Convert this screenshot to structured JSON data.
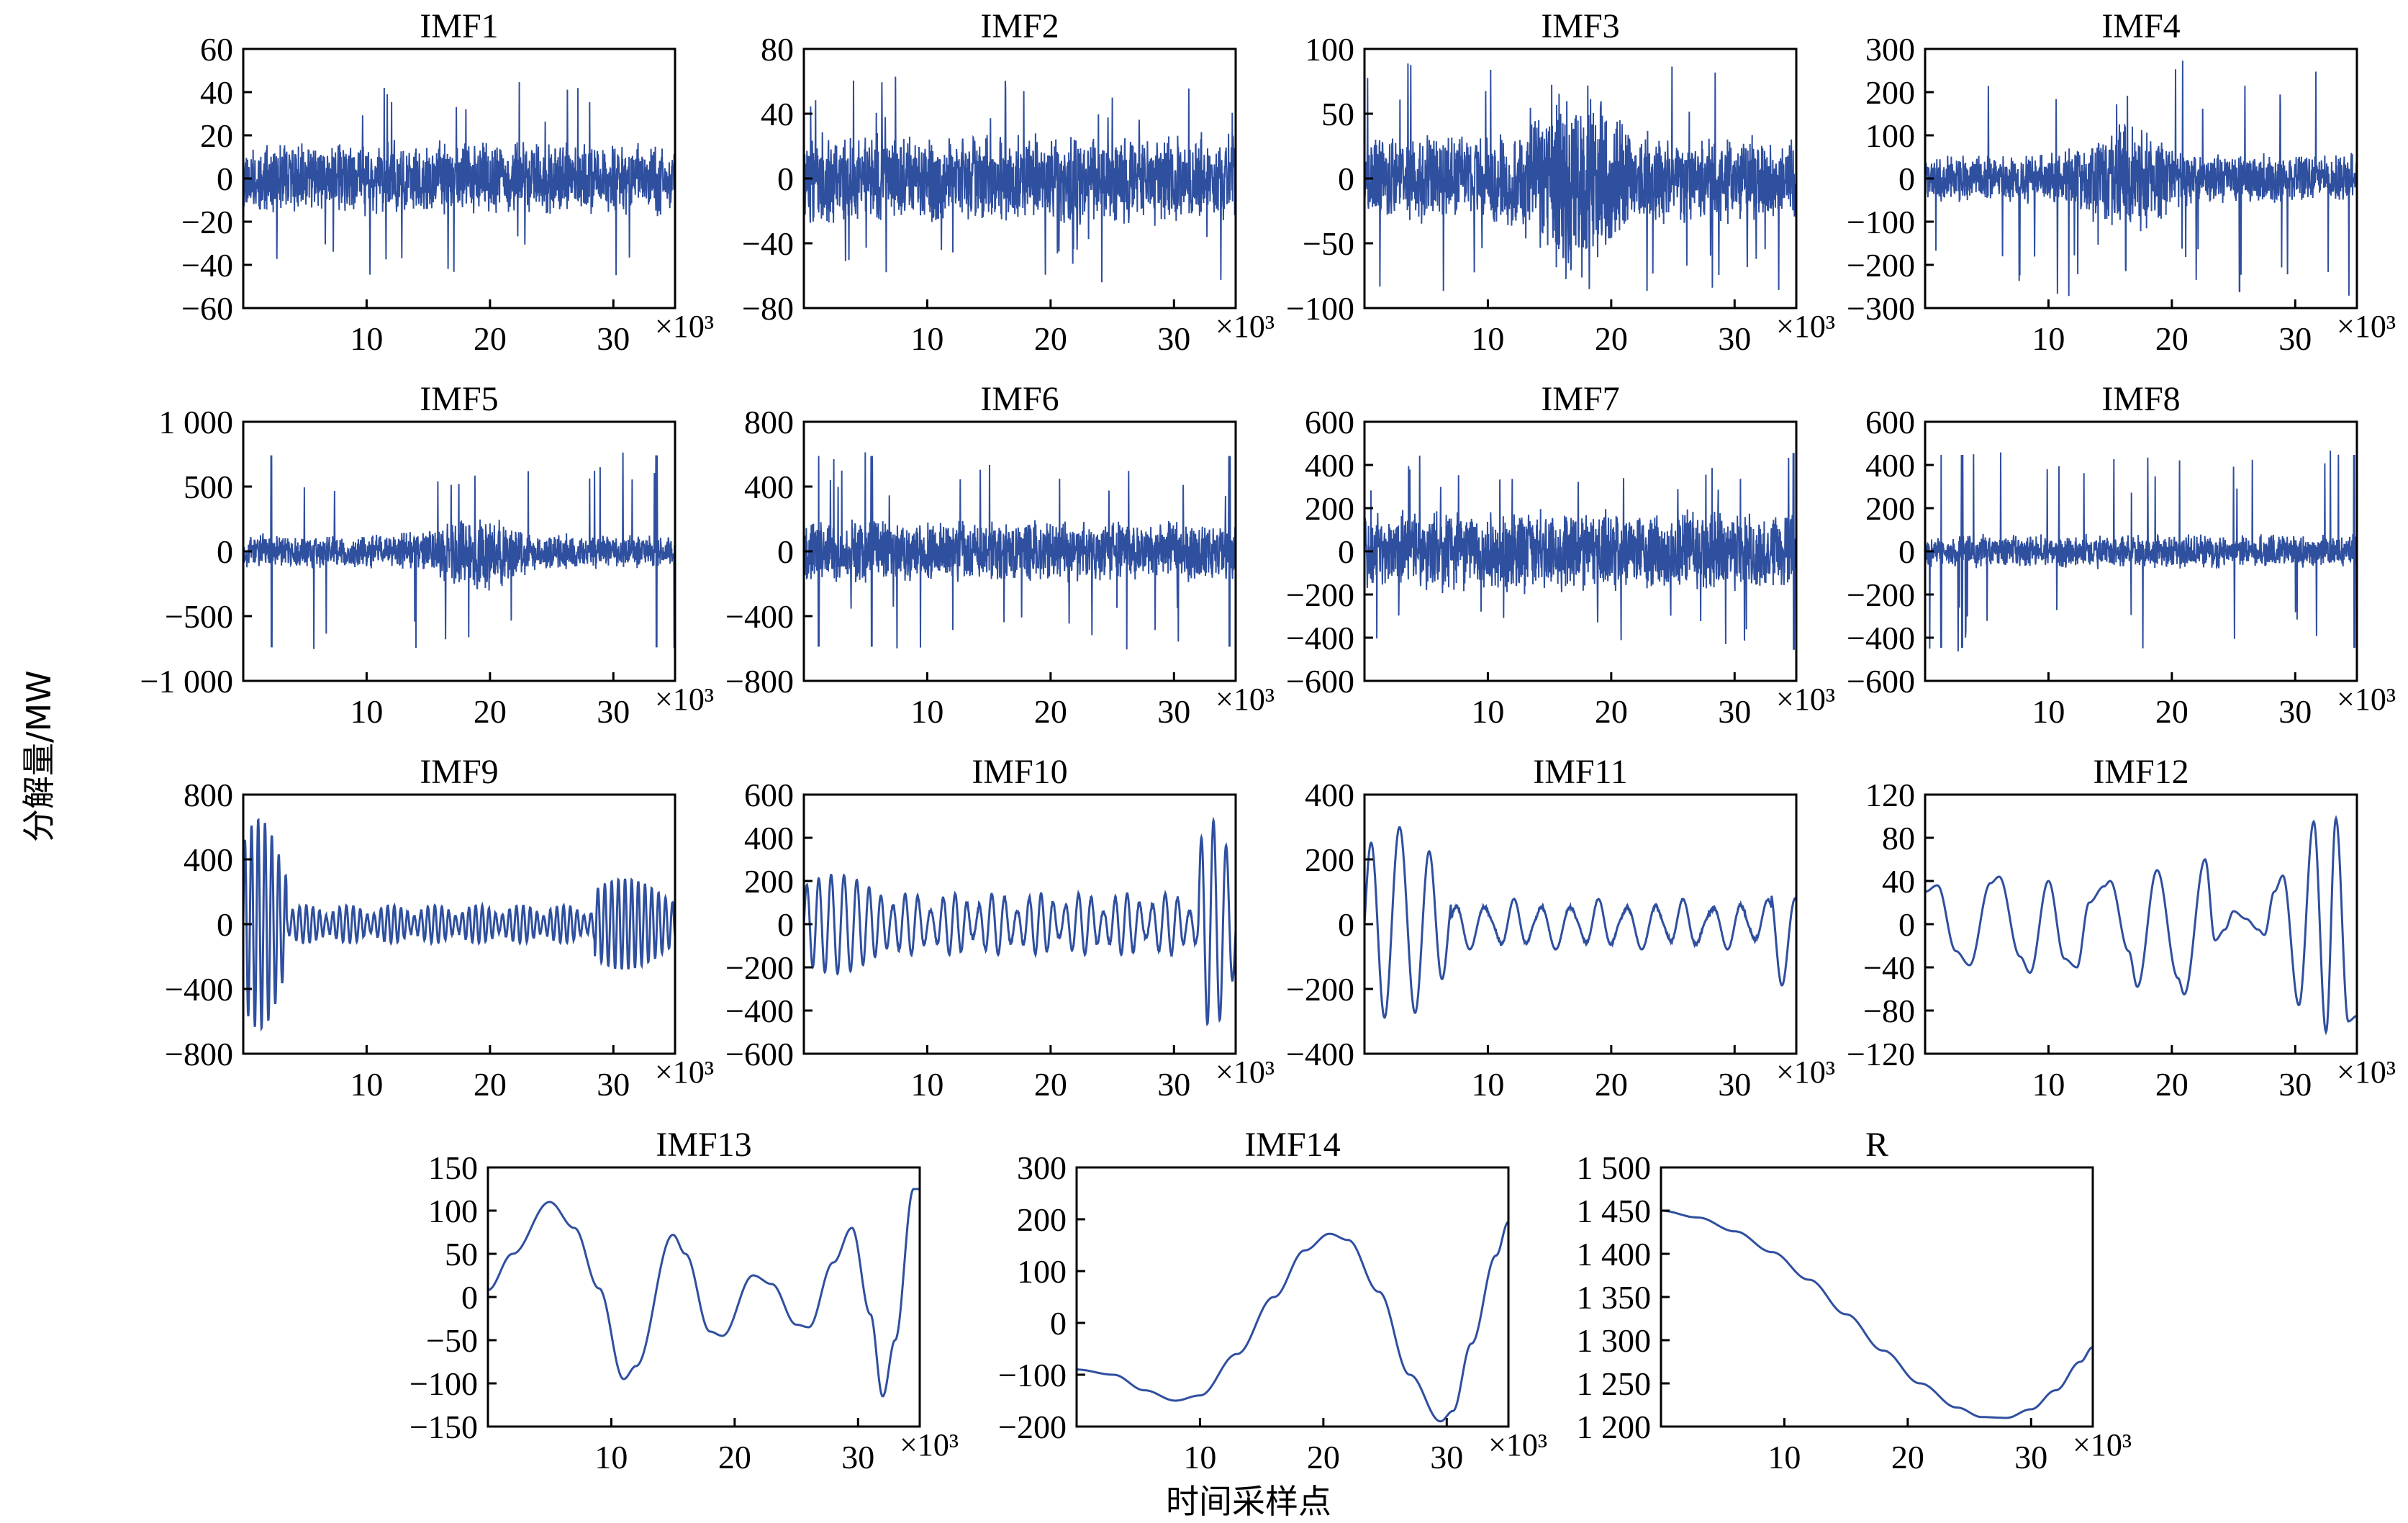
{
  "figure": {
    "ylabel": "分解量/MW",
    "xlabel": "时间采样点",
    "line_color": "#2f4f9f"
  },
  "chart_data": [
    {
      "type": "line",
      "title": "IMF1",
      "xlim": [
        0,
        35
      ],
      "ylim": [
        -60,
        60
      ],
      "xticks": [
        10,
        20,
        30
      ],
      "xtick_labels": [
        "10",
        "20",
        "30"
      ],
      "yticks": [
        -60,
        -40,
        -20,
        0,
        20,
        40,
        60
      ],
      "ytick_labels": [
        "−60",
        "−40",
        "−20",
        "0",
        "20",
        "40",
        "60"
      ],
      "x_multiplier": "×10³",
      "signal": {
        "kind": "noise",
        "amplitude": 15,
        "spike": 45,
        "seed": 11,
        "burst_center": null
      }
    },
    {
      "type": "line",
      "title": "IMF2",
      "xlim": [
        0,
        35
      ],
      "ylim": [
        -80,
        80
      ],
      "xticks": [
        10,
        20,
        30
      ],
      "xtick_labels": [
        "10",
        "20",
        "30"
      ],
      "yticks": [
        -80,
        -40,
        0,
        40,
        80
      ],
      "ytick_labels": [
        "−80",
        "−40",
        "0",
        "40",
        "80"
      ],
      "x_multiplier": "×10³",
      "signal": {
        "kind": "noise",
        "amplitude": 25,
        "spike": 65,
        "seed": 23,
        "burst_center": null
      }
    },
    {
      "type": "line",
      "title": "IMF3",
      "xlim": [
        0,
        35
      ],
      "ylim": [
        -100,
        100
      ],
      "xticks": [
        10,
        20,
        30
      ],
      "xtick_labels": [
        "10",
        "20",
        "30"
      ],
      "yticks": [
        -100,
        -50,
        0,
        50,
        100
      ],
      "ytick_labels": [
        "−100",
        "−50",
        "0",
        "50",
        "100"
      ],
      "x_multiplier": "×10³",
      "signal": {
        "kind": "noise",
        "amplitude": 30,
        "spike": 90,
        "seed": 37,
        "burst_center": 17
      }
    },
    {
      "type": "line",
      "title": "IMF4",
      "xlim": [
        0,
        35
      ],
      "ylim": [
        -300,
        300
      ],
      "xticks": [
        10,
        20,
        30
      ],
      "xtick_labels": [
        "10",
        "20",
        "30"
      ],
      "yticks": [
        -300,
        -200,
        -100,
        0,
        100,
        200,
        300
      ],
      "ytick_labels": [
        "−300",
        "−200",
        "−100",
        "0",
        "100",
        "200",
        "300"
      ],
      "x_multiplier": "×10³",
      "signal": {
        "kind": "noise",
        "amplitude": 50,
        "spike": 275,
        "seed": 41,
        "burst_center": 16.5
      }
    },
    {
      "type": "line",
      "title": "IMF5",
      "xlim": [
        0,
        35
      ],
      "ylim": [
        -1000,
        1000
      ],
      "xticks": [
        10,
        20,
        30
      ],
      "xtick_labels": [
        "10",
        "20",
        "30"
      ],
      "yticks": [
        -1000,
        -500,
        0,
        500,
        1000
      ],
      "ytick_labels": [
        "−1 000",
        "−500",
        "0",
        "500",
        "1 000"
      ],
      "x_multiplier": "×10³",
      "signal": {
        "kind": "noise",
        "amplitude": 120,
        "spike": 780,
        "seed": 53,
        "burst_center": 19,
        "edge_spikes": [
          2.3,
          33.5
        ]
      }
    },
    {
      "type": "line",
      "title": "IMF6",
      "xlim": [
        0,
        35
      ],
      "ylim": [
        -800,
        800
      ],
      "xticks": [
        10,
        20,
        30
      ],
      "xtick_labels": [
        "10",
        "20",
        "30"
      ],
      "yticks": [
        -800,
        -400,
        0,
        400,
        800
      ],
      "ytick_labels": [
        "−800",
        "−400",
        "0",
        "400",
        "800"
      ],
      "x_multiplier": "×10³",
      "signal": {
        "kind": "noise",
        "amplitude": 170,
        "spike": 620,
        "seed": 67,
        "burst_center": null,
        "edge_spikes": [
          1.2,
          5.5,
          34.5
        ]
      }
    },
    {
      "type": "line",
      "title": "IMF7",
      "xlim": [
        0,
        35
      ],
      "ylim": [
        -600,
        600
      ],
      "xticks": [
        10,
        20,
        30
      ],
      "xtick_labels": [
        "10",
        "20",
        "30"
      ],
      "yticks": [
        -600,
        -400,
        -200,
        0,
        200,
        400,
        600
      ],
      "ytick_labels": [
        "−600",
        "−400",
        "−200",
        "0",
        "200",
        "400",
        "600"
      ],
      "x_multiplier": "×10³",
      "signal": {
        "kind": "noise",
        "amplitude": 170,
        "spike": 480,
        "seed": 71,
        "burst_center": null,
        "edge_spikes": [
          34.8
        ]
      }
    },
    {
      "type": "line",
      "title": "IMF8",
      "xlim": [
        0,
        35
      ],
      "ylim": [
        -600,
        600
      ],
      "xticks": [
        10,
        20,
        30
      ],
      "xtick_labels": [
        "10",
        "20",
        "30"
      ],
      "yticks": [
        -600,
        -400,
        -200,
        0,
        200,
        400,
        600
      ],
      "ytick_labels": [
        "−600",
        "−400",
        "−200",
        "0",
        "200",
        "400",
        "600"
      ],
      "x_multiplier": "×10³",
      "signal": {
        "kind": "noise",
        "amplitude": 70,
        "spike": 470,
        "seed": 83,
        "burst_center": null,
        "edge_spikes": [
          1.3,
          3.0,
          34.8
        ]
      }
    },
    {
      "type": "line",
      "title": "IMF9",
      "xlim": [
        0,
        35
      ],
      "ylim": [
        -800,
        800
      ],
      "xticks": [
        10,
        20,
        30
      ],
      "xtick_labels": [
        "10",
        "20",
        "30"
      ],
      "yticks": [
        -800,
        -400,
        0,
        400,
        800
      ],
      "ytick_labels": [
        "−800",
        "−400",
        "0",
        "400",
        "800"
      ],
      "x_multiplier": "×10³",
      "signal": {
        "kind": "osc",
        "amplitude": 90,
        "period": 0.55,
        "seed": 97,
        "edge_bursts": [
          [
            0,
            3.5,
            650
          ],
          [
            28.5,
            35,
            280
          ]
        ]
      }
    },
    {
      "type": "line",
      "title": "IMF10",
      "xlim": [
        0,
        35
      ],
      "ylim": [
        -600,
        600
      ],
      "xticks": [
        10,
        20,
        30
      ],
      "xtick_labels": [
        "10",
        "20",
        "30"
      ],
      "yticks": [
        -600,
        -400,
        -200,
        0,
        200,
        400,
        600
      ],
      "ytick_labels": [
        "−600",
        "−400",
        "−200",
        "0",
        "200",
        "400",
        "600"
      ],
      "x_multiplier": "×10³",
      "signal": {
        "kind": "osc",
        "amplitude": 110,
        "period": 1.0,
        "seed": 101,
        "edge_bursts": [
          [
            0,
            7,
            230
          ],
          [
            32,
            35,
            480
          ]
        ]
      }
    },
    {
      "type": "line",
      "title": "IMF11",
      "xlim": [
        0,
        35
      ],
      "ylim": [
        -400,
        400
      ],
      "xticks": [
        10,
        20,
        30
      ],
      "xtick_labels": [
        "10",
        "20",
        "30"
      ],
      "yticks": [
        -400,
        -200,
        0,
        200,
        400
      ],
      "ytick_labels": [
        "−400",
        "−200",
        "0",
        "200",
        "400"
      ],
      "x_multiplier": "×10³",
      "signal": {
        "kind": "osc",
        "amplitude": 60,
        "period": 2.3,
        "seed": 113,
        "edge_bursts": [
          [
            0,
            7,
            300
          ],
          [
            33,
            35,
            190
          ]
        ]
      }
    },
    {
      "type": "line",
      "title": "IMF12",
      "xlim": [
        0,
        35
      ],
      "ylim": [
        -120,
        120
      ],
      "xticks": [
        10,
        20,
        30
      ],
      "xtick_labels": [
        "10",
        "20",
        "30"
      ],
      "yticks": [
        -120,
        -80,
        -40,
        0,
        40,
        80,
        120
      ],
      "ytick_labels": [
        "−120",
        "−80",
        "−40",
        "0",
        "40",
        "80",
        "120"
      ],
      "x_multiplier": "×10³",
      "signal": {
        "kind": "wave",
        "points": [
          [
            0,
            30
          ],
          [
            1,
            36
          ],
          [
            2.5,
            -25
          ],
          [
            3.6,
            -38
          ],
          [
            5.3,
            38
          ],
          [
            6,
            44
          ],
          [
            7.7,
            -30
          ],
          [
            8.5,
            -45
          ],
          [
            10,
            40
          ],
          [
            11.3,
            -32
          ],
          [
            12.3,
            -40
          ],
          [
            13.3,
            20
          ],
          [
            14.5,
            35
          ],
          [
            15,
            40
          ],
          [
            16.5,
            -25
          ],
          [
            17.2,
            -58
          ],
          [
            18.8,
            50
          ],
          [
            20.5,
            -50
          ],
          [
            21,
            -65
          ],
          [
            22.7,
            60
          ],
          [
            23.5,
            -15
          ],
          [
            24.3,
            -5
          ],
          [
            25,
            12
          ],
          [
            26,
            5
          ],
          [
            27,
            -5
          ],
          [
            27.5,
            -10
          ],
          [
            28.3,
            30
          ],
          [
            29,
            45
          ],
          [
            30.3,
            -75
          ],
          [
            31.5,
            95
          ],
          [
            32.5,
            -100
          ],
          [
            33.3,
            98
          ],
          [
            34.3,
            -90
          ],
          [
            35,
            -85
          ]
        ]
      }
    },
    {
      "type": "line",
      "title": "IMF13",
      "xlim": [
        0,
        35
      ],
      "ylim": [
        -150,
        150
      ],
      "xticks": [
        10,
        20,
        30
      ],
      "xtick_labels": [
        "10",
        "20",
        "30"
      ],
      "yticks": [
        -150,
        -100,
        -50,
        0,
        50,
        100,
        150
      ],
      "ytick_labels": [
        "−150",
        "−100",
        "−50",
        "0",
        "50",
        "100",
        "150"
      ],
      "x_multiplier": "×10³",
      "signal": {
        "kind": "wave",
        "points": [
          [
            0,
            8
          ],
          [
            2,
            50
          ],
          [
            5,
            110
          ],
          [
            7,
            80
          ],
          [
            9,
            10
          ],
          [
            11,
            -95
          ],
          [
            12,
            -80
          ],
          [
            15,
            72
          ],
          [
            16,
            50
          ],
          [
            18,
            -40
          ],
          [
            19,
            -45
          ],
          [
            21.5,
            25
          ],
          [
            23,
            15
          ],
          [
            25,
            -32
          ],
          [
            26,
            -35
          ],
          [
            28,
            40
          ],
          [
            29.5,
            80
          ],
          [
            31,
            -20
          ],
          [
            32,
            -115
          ],
          [
            33,
            -50
          ],
          [
            34.5,
            125
          ],
          [
            35,
            125
          ]
        ]
      }
    },
    {
      "type": "line",
      "title": "IMF14",
      "xlim": [
        0,
        35
      ],
      "ylim": [
        -200,
        300
      ],
      "xticks": [
        10,
        20,
        30
      ],
      "xtick_labels": [
        "10",
        "20",
        "30"
      ],
      "yticks": [
        -200,
        -100,
        0,
        100,
        200,
        300
      ],
      "ytick_labels": [
        "−200",
        "−100",
        "0",
        "100",
        "200",
        "300"
      ],
      "x_multiplier": "×10³",
      "signal": {
        "kind": "wave",
        "points": [
          [
            0,
            -90
          ],
          [
            3,
            -100
          ],
          [
            5.5,
            -130
          ],
          [
            8,
            -150
          ],
          [
            10,
            -140
          ],
          [
            13,
            -60
          ],
          [
            16,
            50
          ],
          [
            18.5,
            140
          ],
          [
            20.5,
            172
          ],
          [
            22,
            160
          ],
          [
            24.5,
            60
          ],
          [
            27,
            -100
          ],
          [
            29.5,
            -190
          ],
          [
            30.5,
            -170
          ],
          [
            32,
            -40
          ],
          [
            34,
            130
          ],
          [
            35,
            195
          ]
        ]
      }
    },
    {
      "type": "line",
      "title": "R",
      "xlim": [
        0,
        35
      ],
      "ylim": [
        1200,
        1500
      ],
      "xticks": [
        10,
        20,
        30
      ],
      "xtick_labels": [
        "10",
        "20",
        "30"
      ],
      "yticks": [
        1200,
        1250,
        1300,
        1350,
        1400,
        1450,
        1500
      ],
      "ytick_labels": [
        "1 200",
        "1 250",
        "1 300",
        "1 350",
        "1 400",
        "1 450",
        "1 500"
      ],
      "x_multiplier": "×10³",
      "signal": {
        "kind": "wave",
        "points": [
          [
            0,
            1450
          ],
          [
            3,
            1442
          ],
          [
            6,
            1426
          ],
          [
            9,
            1402
          ],
          [
            12,
            1370
          ],
          [
            15,
            1330
          ],
          [
            18,
            1288
          ],
          [
            21,
            1250
          ],
          [
            24,
            1222
          ],
          [
            26,
            1211
          ],
          [
            28,
            1210
          ],
          [
            30,
            1220
          ],
          [
            32,
            1242
          ],
          [
            34,
            1275
          ],
          [
            35,
            1292
          ]
        ]
      }
    }
  ]
}
